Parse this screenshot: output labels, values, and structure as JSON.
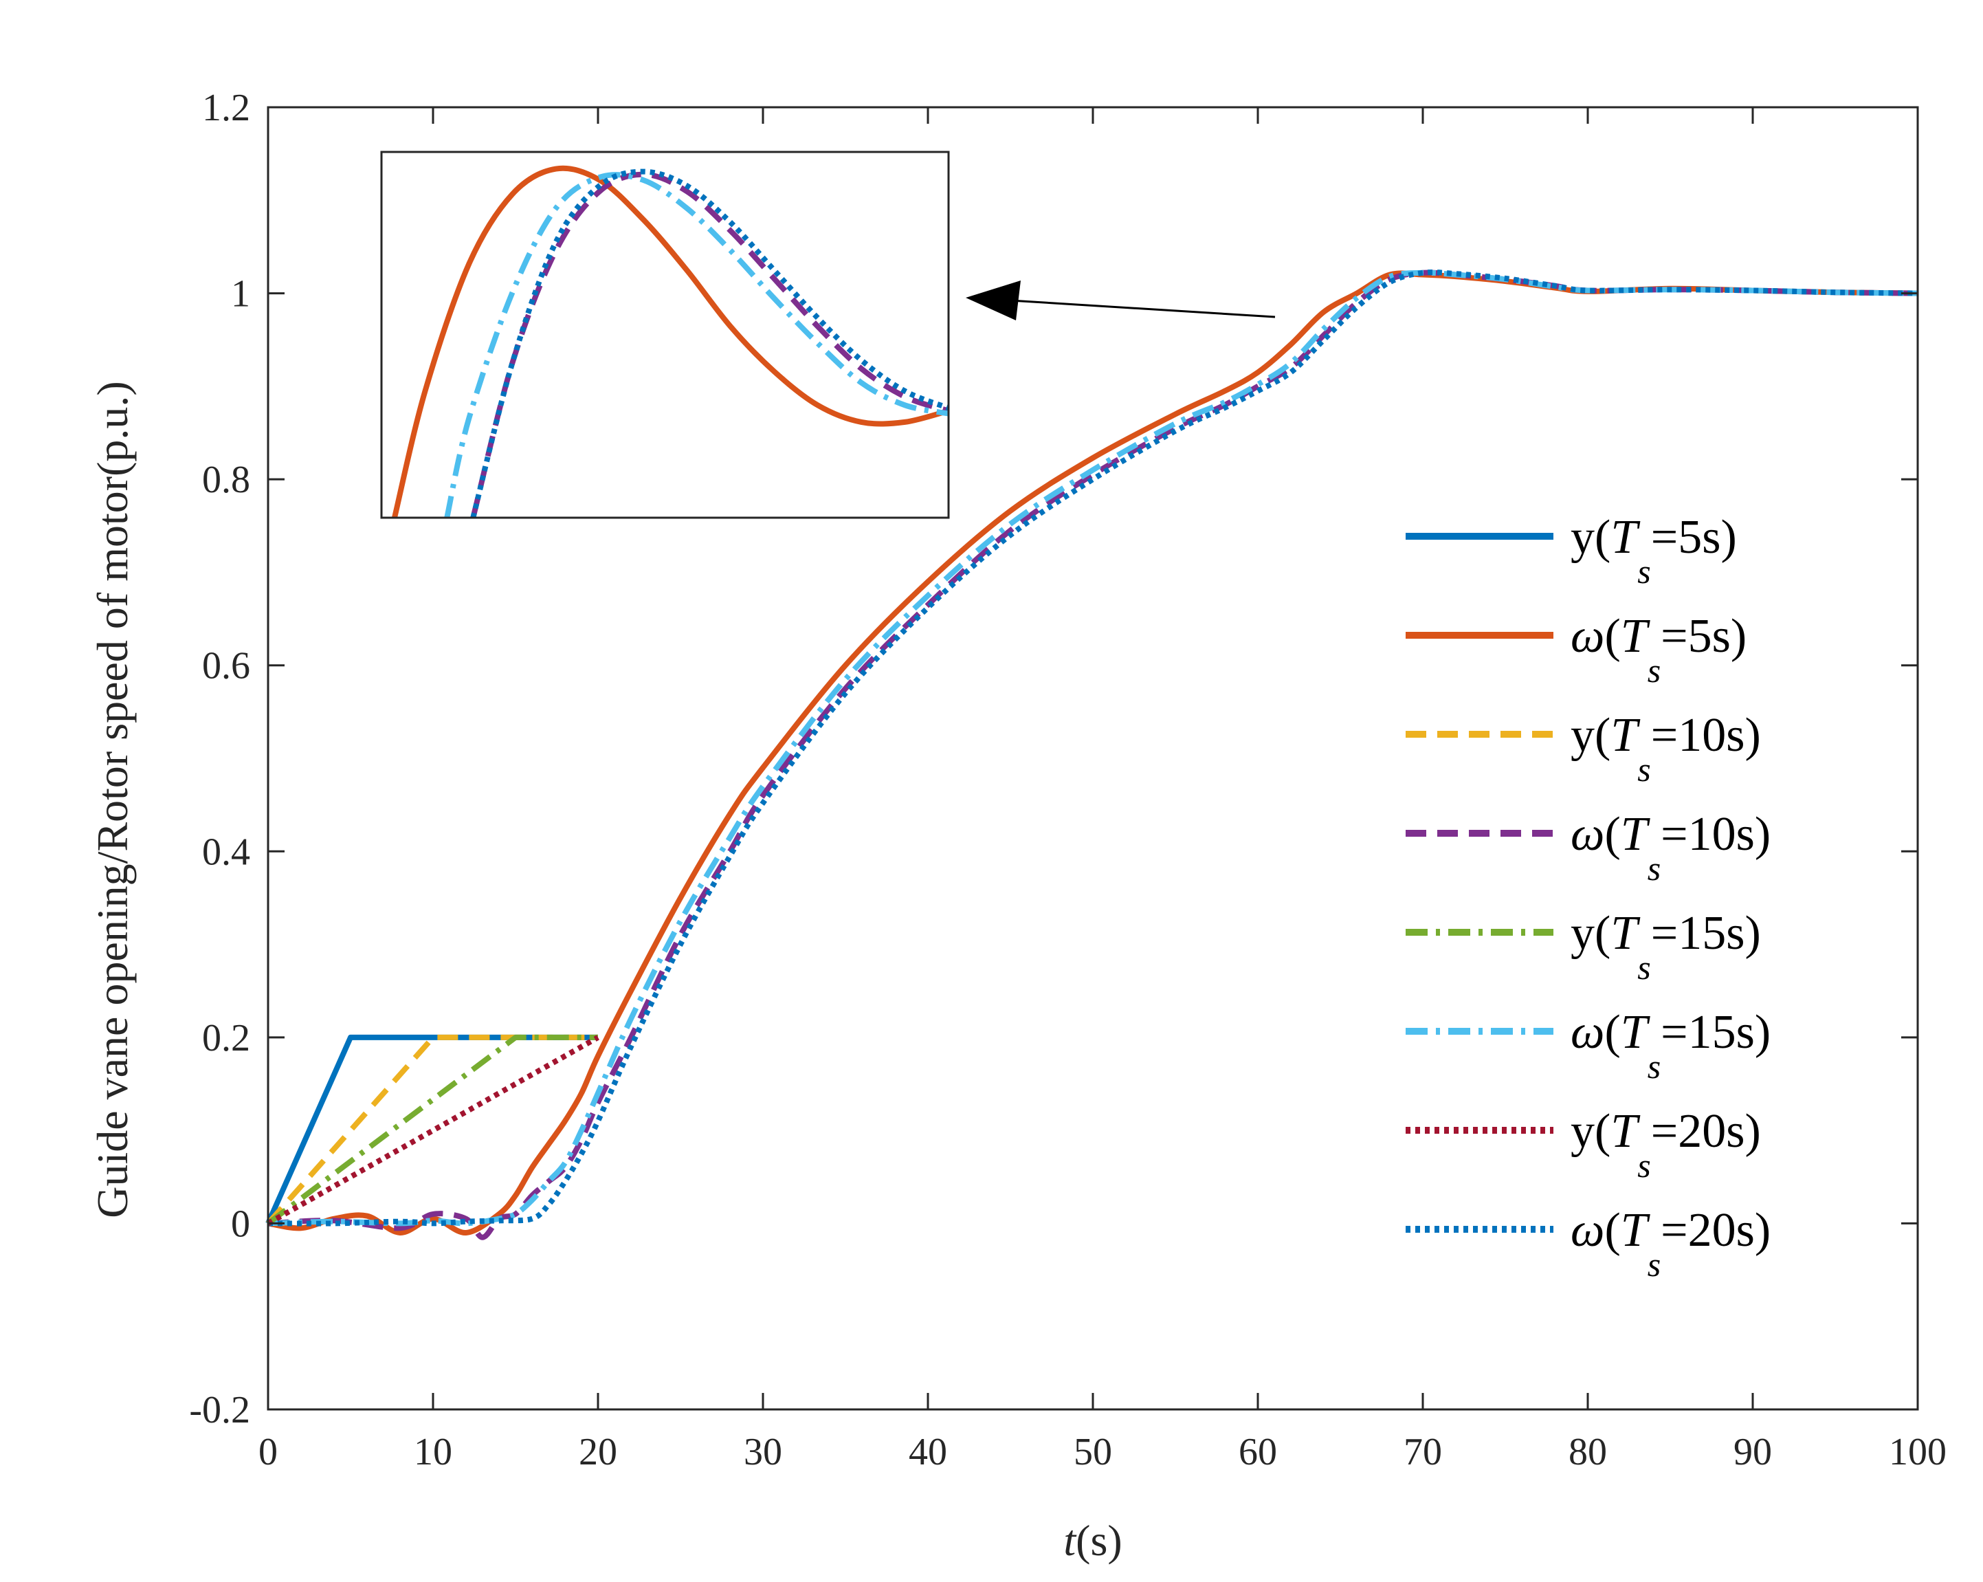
{
  "chart_data": {
    "type": "line",
    "title": "",
    "xlabel": "t(s)",
    "xlabel_var": "t",
    "xlabel_unit": "(s)",
    "ylabel": "Guide vane opening/Rotor speed of motor(p.u.)",
    "xlim": [
      0,
      100
    ],
    "ylim": [
      -0.2,
      1.2
    ],
    "xticks": [
      0,
      10,
      20,
      30,
      40,
      50,
      60,
      70,
      80,
      90,
      100
    ],
    "yticks": [
      -0.2,
      0,
      0.2,
      0.4,
      0.6,
      0.8,
      1,
      1.2
    ],
    "xtick_labels": [
      "0",
      "10",
      "20",
      "30",
      "40",
      "50",
      "60",
      "70",
      "80",
      "90",
      "100"
    ],
    "ytick_labels": [
      "-0.2",
      "0",
      "0.2",
      "0.4",
      "0.6",
      "0.8",
      "1",
      "1.2"
    ],
    "grid": false,
    "legend_position": "right",
    "legend_subscript": "s",
    "series": [
      {
        "name": "y(Ts=5s)",
        "sym": "y(",
        "var": "T",
        "rest": "=5s)",
        "color": "#0072BD",
        "dash": "solid",
        "x": [
          0,
          5,
          20
        ],
        "y": [
          0,
          0.2,
          0.2
        ]
      },
      {
        "name": "ω(Ts=5s)",
        "sym": "ω(",
        "var": "T",
        "rest": "=5s)",
        "color": "#D95319",
        "dash": "solid",
        "x": [
          0,
          2,
          4,
          6,
          8,
          10,
          12,
          14,
          15,
          16,
          17,
          18,
          19,
          20,
          22,
          25,
          28,
          30,
          35,
          40,
          45,
          50,
          55,
          58,
          60,
          62,
          64,
          66,
          68,
          70,
          72,
          75,
          78,
          80,
          85,
          90,
          95,
          100
        ],
        "y": [
          0,
          -0.005,
          0.005,
          0.008,
          -0.01,
          0.005,
          -0.01,
          0.01,
          0.03,
          0.06,
          0.085,
          0.11,
          0.14,
          0.18,
          0.25,
          0.35,
          0.44,
          0.49,
          0.6,
          0.69,
          0.766,
          0.823,
          0.87,
          0.895,
          0.915,
          0.945,
          0.98,
          1.0,
          1.02,
          1.02,
          1.018,
          1.013,
          1.006,
          1.002,
          1.005,
          1.003,
          1.001,
          1.0
        ]
      },
      {
        "name": "y(Ts=10s)",
        "sym": "y(",
        "var": "T",
        "rest": "=10s)",
        "color": "#EDB120",
        "dash": "dashed",
        "x": [
          0,
          10,
          20
        ],
        "y": [
          0,
          0.2,
          0.2
        ]
      },
      {
        "name": "ω(Ts=10s)",
        "sym": "ω(",
        "var": "T",
        "rest": "=10s)",
        "color": "#7E2F8E",
        "dash": "dashed",
        "x": [
          0,
          4,
          8,
          10,
          12,
          13,
          14,
          15,
          16,
          17,
          18,
          19,
          20,
          22,
          25,
          28,
          30,
          35,
          40,
          45,
          50,
          55,
          58,
          60,
          62,
          64,
          66,
          68,
          70,
          72,
          75,
          78,
          80,
          85,
          90,
          95,
          100
        ],
        "y": [
          0,
          0.003,
          -0.005,
          0.01,
          0.005,
          -0.015,
          0.005,
          0.01,
          0.03,
          0.045,
          0.06,
          0.09,
          0.13,
          0.2,
          0.31,
          0.4,
          0.46,
          0.575,
          0.665,
          0.745,
          0.805,
          0.855,
          0.88,
          0.9,
          0.92,
          0.955,
          0.99,
          1.015,
          1.022,
          1.02,
          1.015,
          1.008,
          1.003,
          1.004,
          1.003,
          1.001,
          1.0
        ]
      },
      {
        "name": "y(Ts=15s)",
        "sym": "y(",
        "var": "T",
        "rest": "=15s)",
        "color": "#77AC30",
        "dash": "dashdot",
        "x": [
          0,
          15,
          20
        ],
        "y": [
          0,
          0.2,
          0.2
        ]
      },
      {
        "name": "ω(Ts=15s)",
        "sym": "ω(",
        "var": "T",
        "rest": "=15s)",
        "color": "#4DBEEE",
        "dash": "dashdot",
        "x": [
          0,
          4,
          8,
          10,
          12,
          14,
          15,
          16,
          17,
          18,
          19,
          20,
          22,
          25,
          28,
          30,
          35,
          40,
          45,
          50,
          55,
          58,
          60,
          62,
          64,
          66,
          68,
          70,
          72,
          75,
          78,
          80,
          85,
          90,
          95,
          100
        ],
        "y": [
          0,
          0.002,
          0.0,
          0.003,
          0.0,
          0.005,
          0.01,
          0.025,
          0.045,
          0.065,
          0.1,
          0.14,
          0.22,
          0.325,
          0.415,
          0.47,
          0.585,
          0.675,
          0.752,
          0.81,
          0.86,
          0.883,
          0.902,
          0.925,
          0.962,
          0.995,
          1.018,
          1.022,
          1.02,
          1.015,
          1.007,
          1.003,
          1.004,
          1.003,
          1.001,
          1.0
        ]
      },
      {
        "name": "y(Ts=20s)",
        "sym": "y(",
        "var": "T",
        "rest": "=20s)",
        "color": "#A2142F",
        "dash": "dotted",
        "x": [
          0,
          20
        ],
        "y": [
          0,
          0.2
        ]
      },
      {
        "name": "ω(Ts=20s)",
        "sym": "ω(",
        "var": "T",
        "rest": "=20s)",
        "color": "#0072BD",
        "dash": "dotted",
        "x": [
          0,
          4,
          8,
          10,
          12,
          14,
          16,
          17,
          18,
          19,
          20,
          22,
          25,
          28,
          30,
          35,
          40,
          45,
          50,
          55,
          58,
          60,
          62,
          64,
          66,
          68,
          70,
          72,
          75,
          78,
          80,
          85,
          90,
          95,
          100
        ],
        "y": [
          0,
          0.0,
          0.002,
          0.0,
          0.002,
          0.003,
          0.005,
          0.02,
          0.045,
          0.075,
          0.11,
          0.19,
          0.3,
          0.395,
          0.452,
          0.57,
          0.662,
          0.74,
          0.8,
          0.852,
          0.877,
          0.895,
          0.915,
          0.95,
          0.985,
          1.012,
          1.022,
          1.021,
          1.016,
          1.008,
          1.003,
          1.004,
          1.003,
          1.001,
          1.0
        ]
      }
    ],
    "inset": {
      "description": "Zoom of peak region near t=68..72 s",
      "xlim": [
        63,
        76
      ],
      "ylim": [
        0.9,
        1.03
      ],
      "series": [
        {
          "name": "ω(Ts=5s)",
          "color": "#D95319",
          "dash": "solid",
          "x": [
            63.3,
            64,
            65,
            66,
            67,
            68,
            69,
            70,
            71,
            72,
            73,
            74,
            75,
            76
          ],
          "y": [
            0.9,
            0.945,
            0.99,
            1.015,
            1.024,
            1.02,
            1.006,
            0.988,
            0.968,
            0.952,
            0.94,
            0.934,
            0.934,
            0.938
          ]
        },
        {
          "name": "ω(Ts=10s)",
          "color": "#7E2F8E",
          "dash": "dashed",
          "x": [
            65.1,
            66,
            67,
            68,
            69,
            70,
            71,
            72,
            73,
            74,
            75,
            76
          ],
          "y": [
            0.9,
            0.955,
            0.995,
            1.016,
            1.022,
            1.016,
            1.002,
            0.985,
            0.968,
            0.953,
            0.943,
            0.938
          ]
        },
        {
          "name": "ω(Ts=15s)",
          "color": "#4DBEEE",
          "dash": "dashdot",
          "x": [
            64.5,
            65,
            66,
            67,
            68,
            69,
            70,
            71,
            72,
            73,
            74,
            75,
            76
          ],
          "y": [
            0.9,
            0.935,
            0.98,
            1.01,
            1.021,
            1.02,
            1.01,
            0.995,
            0.978,
            0.962,
            0.948,
            0.94,
            0.937
          ]
        },
        {
          "name": "ω(Ts=20s)",
          "color": "#0072BD",
          "dash": "dotted",
          "x": [
            65.1,
            66,
            67,
            68,
            69,
            70,
            71,
            72,
            73,
            74,
            75,
            76
          ],
          "y": [
            0.9,
            0.955,
            0.998,
            1.018,
            1.023,
            1.018,
            1.005,
            0.988,
            0.971,
            0.956,
            0.945,
            0.939
          ]
        }
      ]
    }
  }
}
